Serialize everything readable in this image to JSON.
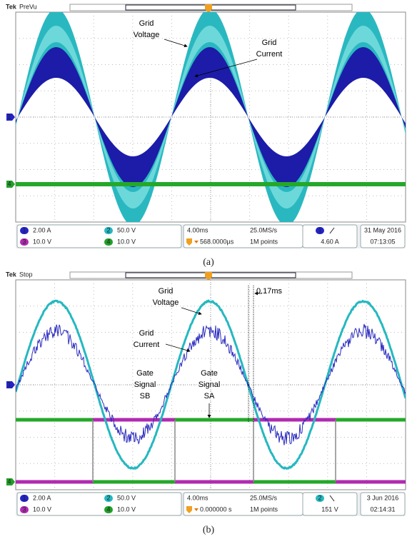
{
  "panels": [
    {
      "header": {
        "brand": "Tek",
        "status": "PreVu"
      },
      "annotations": [
        {
          "lines": [
            "Grid",
            "Voltage"
          ]
        },
        {
          "lines": [
            "Grid",
            "Current"
          ]
        }
      ],
      "markers": {
        "ch1": "1",
        "ch4": "4"
      },
      "status_bar": {
        "channels": [
          {
            "id": "1",
            "scale": "2.00 A"
          },
          {
            "id": "3",
            "scale": "10.0 V"
          },
          {
            "id": "2",
            "scale": "50.0 V"
          },
          {
            "id": "4",
            "scale": "10.0 V"
          }
        ],
        "timebase": "4.00ms",
        "trigger_position": "568.0000µs",
        "sample_rate": "25.0MS/s",
        "record_length": "1M points",
        "trigger_channel": "1",
        "trigger_level": "4.60 A",
        "date": "31 May 2016",
        "time": "07:13:05"
      },
      "caption": "(a)"
    },
    {
      "header": {
        "brand": "Tek",
        "status": "Stop"
      },
      "annotations": [
        {
          "lines": [
            "Grid",
            "Voltage"
          ]
        },
        {
          "lines": [
            "Grid",
            "Current"
          ]
        },
        {
          "lines": [
            "Gate",
            "Signal",
            "SB"
          ]
        },
        {
          "lines": [
            "Gate",
            "Signal",
            "SA"
          ]
        },
        {
          "lines": [
            "0.17ms"
          ]
        }
      ],
      "markers": {
        "ch1": "1",
        "ch4": "4"
      },
      "status_bar": {
        "channels": [
          {
            "id": "1",
            "scale": "2.00 A"
          },
          {
            "id": "3",
            "scale": "10.0 V"
          },
          {
            "id": "2",
            "scale": "50.0 V"
          },
          {
            "id": "4",
            "scale": "10.0 V"
          }
        ],
        "timebase": "4.00ms",
        "trigger_position": "0.000000 s",
        "sample_rate": "25.0MS/s",
        "record_length": "1M points",
        "trigger_channel": "2",
        "trigger_level": "151 V",
        "date": "3 Jun 2016",
        "time": "02:14:31"
      },
      "caption": "(b)"
    }
  ]
}
